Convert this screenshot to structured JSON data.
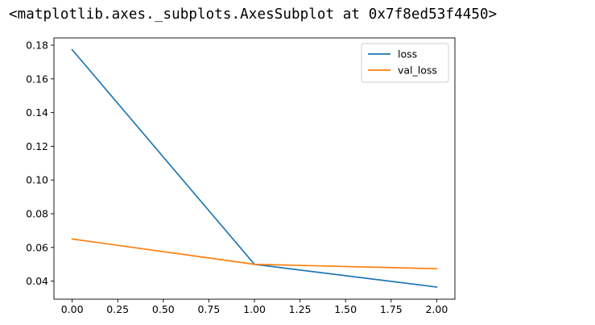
{
  "output_text": "<matplotlib.axes._subplots.AxesSubplot at 0x7f8ed53f4450>",
  "chart_data": {
    "type": "line",
    "title": "",
    "xlabel": "",
    "ylabel": "",
    "xlim": [
      -0.1,
      2.1
    ],
    "ylim": [
      0.0293,
      0.1843
    ],
    "x_ticks": [
      0.0,
      0.25,
      0.5,
      0.75,
      1.0,
      1.25,
      1.5,
      1.75,
      2.0
    ],
    "x_tick_labels": [
      "0.00",
      "0.25",
      "0.50",
      "0.75",
      "1.00",
      "1.25",
      "1.50",
      "1.75",
      "2.00"
    ],
    "y_ticks": [
      0.04,
      0.06,
      0.08,
      0.1,
      0.12,
      0.14,
      0.16,
      0.18
    ],
    "y_tick_labels": [
      "0.04",
      "0.06",
      "0.08",
      "0.10",
      "0.12",
      "0.14",
      "0.16",
      "0.18"
    ],
    "grid": false,
    "legend_position": "top-right",
    "x": [
      0,
      1,
      2
    ],
    "series": [
      {
        "name": "loss",
        "color": "#1f77b4",
        "values": [
          0.1773,
          0.05,
          0.0365
        ]
      },
      {
        "name": "val_loss",
        "color": "#ff7f0e",
        "values": [
          0.065,
          0.05,
          0.0474
        ]
      }
    ]
  }
}
